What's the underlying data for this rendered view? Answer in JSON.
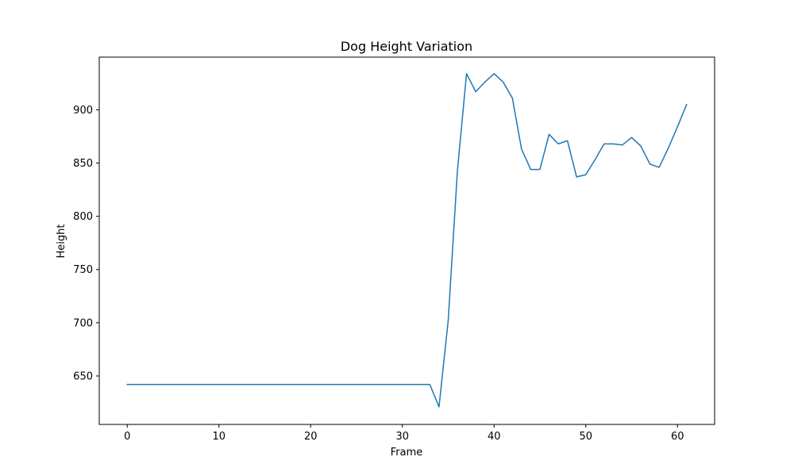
{
  "chart_data": {
    "type": "line",
    "title": "Dog Height Variation",
    "xlabel": "Frame",
    "ylabel": "Height",
    "xlim": [
      -3.05,
      64.05
    ],
    "ylim": [
      604.5,
      949.5
    ],
    "xticks": [
      0,
      10,
      20,
      30,
      40,
      50,
      60
    ],
    "yticks": [
      650,
      700,
      750,
      800,
      850,
      900
    ],
    "grid": false,
    "series": [
      {
        "color": "#1f77b4",
        "x": [
          0,
          1,
          2,
          3,
          4,
          5,
          6,
          7,
          8,
          9,
          10,
          11,
          12,
          13,
          14,
          15,
          16,
          17,
          18,
          19,
          20,
          21,
          22,
          23,
          24,
          25,
          26,
          27,
          28,
          29,
          30,
          31,
          32,
          33,
          34,
          35,
          36,
          37,
          38,
          39,
          40,
          41,
          42,
          43,
          44,
          45,
          46,
          47,
          48,
          49,
          50,
          51,
          52,
          53,
          54,
          55,
          56,
          57,
          58,
          59,
          60,
          61
        ],
        "y": [
          642,
          642,
          642,
          642,
          642,
          642,
          642,
          642,
          642,
          642,
          642,
          642,
          642,
          642,
          642,
          642,
          642,
          642,
          642,
          642,
          642,
          642,
          642,
          642,
          642,
          642,
          642,
          642,
          642,
          642,
          642,
          642,
          642,
          642,
          621,
          702,
          842,
          934,
          917,
          926,
          934,
          926,
          911,
          863,
          844,
          844,
          877,
          868,
          871,
          837,
          839,
          853,
          868,
          868,
          867,
          874,
          866,
          849,
          846,
          864,
          884,
          905
        ]
      }
    ]
  }
}
